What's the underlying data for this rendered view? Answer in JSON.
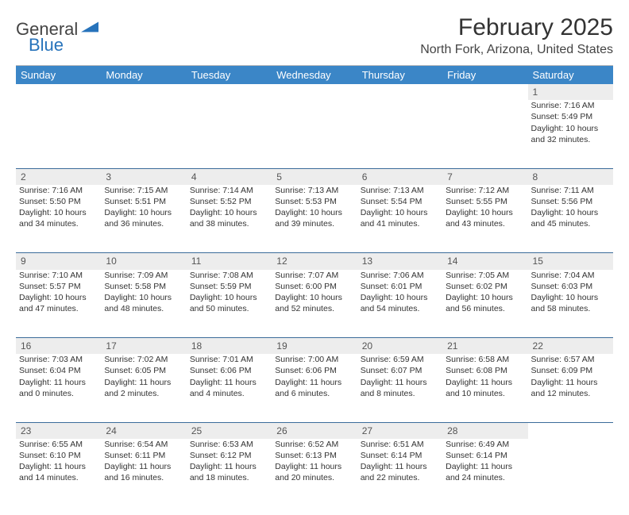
{
  "brand": {
    "part1": "General",
    "part2": "Blue"
  },
  "title": "February 2025",
  "location": "North Fork, Arizona, United States",
  "header_bg": "#3b86c7",
  "dow": [
    "Sunday",
    "Monday",
    "Tuesday",
    "Wednesday",
    "Thursday",
    "Friday",
    "Saturday"
  ],
  "weeks": [
    [
      null,
      null,
      null,
      null,
      null,
      null,
      {
        "n": "1",
        "sr": "Sunrise: 7:16 AM",
        "ss": "Sunset: 5:49 PM",
        "d1": "Daylight: 10 hours",
        "d2": "and 32 minutes."
      }
    ],
    [
      {
        "n": "2",
        "sr": "Sunrise: 7:16 AM",
        "ss": "Sunset: 5:50 PM",
        "d1": "Daylight: 10 hours",
        "d2": "and 34 minutes."
      },
      {
        "n": "3",
        "sr": "Sunrise: 7:15 AM",
        "ss": "Sunset: 5:51 PM",
        "d1": "Daylight: 10 hours",
        "d2": "and 36 minutes."
      },
      {
        "n": "4",
        "sr": "Sunrise: 7:14 AM",
        "ss": "Sunset: 5:52 PM",
        "d1": "Daylight: 10 hours",
        "d2": "and 38 minutes."
      },
      {
        "n": "5",
        "sr": "Sunrise: 7:13 AM",
        "ss": "Sunset: 5:53 PM",
        "d1": "Daylight: 10 hours",
        "d2": "and 39 minutes."
      },
      {
        "n": "6",
        "sr": "Sunrise: 7:13 AM",
        "ss": "Sunset: 5:54 PM",
        "d1": "Daylight: 10 hours",
        "d2": "and 41 minutes."
      },
      {
        "n": "7",
        "sr": "Sunrise: 7:12 AM",
        "ss": "Sunset: 5:55 PM",
        "d1": "Daylight: 10 hours",
        "d2": "and 43 minutes."
      },
      {
        "n": "8",
        "sr": "Sunrise: 7:11 AM",
        "ss": "Sunset: 5:56 PM",
        "d1": "Daylight: 10 hours",
        "d2": "and 45 minutes."
      }
    ],
    [
      {
        "n": "9",
        "sr": "Sunrise: 7:10 AM",
        "ss": "Sunset: 5:57 PM",
        "d1": "Daylight: 10 hours",
        "d2": "and 47 minutes."
      },
      {
        "n": "10",
        "sr": "Sunrise: 7:09 AM",
        "ss": "Sunset: 5:58 PM",
        "d1": "Daylight: 10 hours",
        "d2": "and 48 minutes."
      },
      {
        "n": "11",
        "sr": "Sunrise: 7:08 AM",
        "ss": "Sunset: 5:59 PM",
        "d1": "Daylight: 10 hours",
        "d2": "and 50 minutes."
      },
      {
        "n": "12",
        "sr": "Sunrise: 7:07 AM",
        "ss": "Sunset: 6:00 PM",
        "d1": "Daylight: 10 hours",
        "d2": "and 52 minutes."
      },
      {
        "n": "13",
        "sr": "Sunrise: 7:06 AM",
        "ss": "Sunset: 6:01 PM",
        "d1": "Daylight: 10 hours",
        "d2": "and 54 minutes."
      },
      {
        "n": "14",
        "sr": "Sunrise: 7:05 AM",
        "ss": "Sunset: 6:02 PM",
        "d1": "Daylight: 10 hours",
        "d2": "and 56 minutes."
      },
      {
        "n": "15",
        "sr": "Sunrise: 7:04 AM",
        "ss": "Sunset: 6:03 PM",
        "d1": "Daylight: 10 hours",
        "d2": "and 58 minutes."
      }
    ],
    [
      {
        "n": "16",
        "sr": "Sunrise: 7:03 AM",
        "ss": "Sunset: 6:04 PM",
        "d1": "Daylight: 11 hours",
        "d2": "and 0 minutes."
      },
      {
        "n": "17",
        "sr": "Sunrise: 7:02 AM",
        "ss": "Sunset: 6:05 PM",
        "d1": "Daylight: 11 hours",
        "d2": "and 2 minutes."
      },
      {
        "n": "18",
        "sr": "Sunrise: 7:01 AM",
        "ss": "Sunset: 6:06 PM",
        "d1": "Daylight: 11 hours",
        "d2": "and 4 minutes."
      },
      {
        "n": "19",
        "sr": "Sunrise: 7:00 AM",
        "ss": "Sunset: 6:06 PM",
        "d1": "Daylight: 11 hours",
        "d2": "and 6 minutes."
      },
      {
        "n": "20",
        "sr": "Sunrise: 6:59 AM",
        "ss": "Sunset: 6:07 PM",
        "d1": "Daylight: 11 hours",
        "d2": "and 8 minutes."
      },
      {
        "n": "21",
        "sr": "Sunrise: 6:58 AM",
        "ss": "Sunset: 6:08 PM",
        "d1": "Daylight: 11 hours",
        "d2": "and 10 minutes."
      },
      {
        "n": "22",
        "sr": "Sunrise: 6:57 AM",
        "ss": "Sunset: 6:09 PM",
        "d1": "Daylight: 11 hours",
        "d2": "and 12 minutes."
      }
    ],
    [
      {
        "n": "23",
        "sr": "Sunrise: 6:55 AM",
        "ss": "Sunset: 6:10 PM",
        "d1": "Daylight: 11 hours",
        "d2": "and 14 minutes."
      },
      {
        "n": "24",
        "sr": "Sunrise: 6:54 AM",
        "ss": "Sunset: 6:11 PM",
        "d1": "Daylight: 11 hours",
        "d2": "and 16 minutes."
      },
      {
        "n": "25",
        "sr": "Sunrise: 6:53 AM",
        "ss": "Sunset: 6:12 PM",
        "d1": "Daylight: 11 hours",
        "d2": "and 18 minutes."
      },
      {
        "n": "26",
        "sr": "Sunrise: 6:52 AM",
        "ss": "Sunset: 6:13 PM",
        "d1": "Daylight: 11 hours",
        "d2": "and 20 minutes."
      },
      {
        "n": "27",
        "sr": "Sunrise: 6:51 AM",
        "ss": "Sunset: 6:14 PM",
        "d1": "Daylight: 11 hours",
        "d2": "and 22 minutes."
      },
      {
        "n": "28",
        "sr": "Sunrise: 6:49 AM",
        "ss": "Sunset: 6:14 PM",
        "d1": "Daylight: 11 hours",
        "d2": "and 24 minutes."
      },
      null
    ]
  ]
}
